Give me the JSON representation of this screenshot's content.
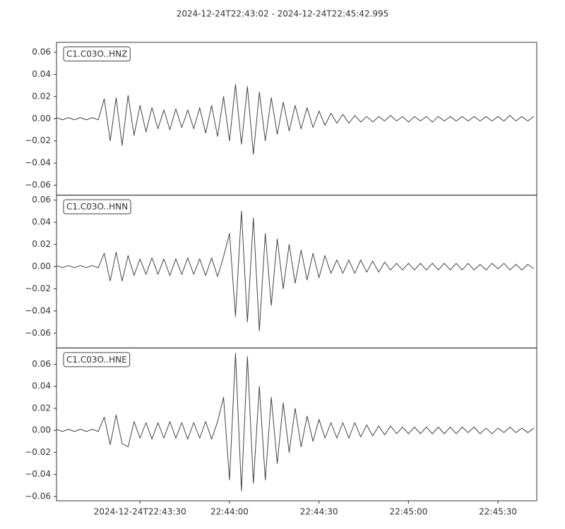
{
  "chart_data": {
    "type": "line",
    "title": "2024-12-24T22:43:02  -  2024-12-24T22:45:42.995",
    "xlim": [
      "2024-12-24T22:43:02",
      "2024-12-24T22:45:42.995"
    ],
    "xticks": [
      {
        "value": "2024-12-24T22:43:30",
        "label": "2024-12-24T22:43:30"
      },
      {
        "value": "2024-12-24T22:44:00",
        "label": "22:44:00"
      },
      {
        "value": "2024-12-24T22:44:30",
        "label": "22:44:30"
      },
      {
        "value": "2024-12-24T22:45:00",
        "label": "22:45:00"
      },
      {
        "value": "2024-12-24T22:45:30",
        "label": "22:45:30"
      }
    ],
    "x": [
      "2024-12-24T22:43:02",
      "2024-12-24T22:43:04",
      "2024-12-24T22:43:06",
      "2024-12-24T22:43:08",
      "2024-12-24T22:43:10",
      "2024-12-24T22:43:12",
      "2024-12-24T22:43:14",
      "2024-12-24T22:43:16",
      "2024-12-24T22:43:18",
      "2024-12-24T22:43:20",
      "2024-12-24T22:43:22",
      "2024-12-24T22:43:24",
      "2024-12-24T22:43:26",
      "2024-12-24T22:43:28",
      "2024-12-24T22:43:30",
      "2024-12-24T22:43:32",
      "2024-12-24T22:43:34",
      "2024-12-24T22:43:36",
      "2024-12-24T22:43:38",
      "2024-12-24T22:43:40",
      "2024-12-24T22:43:42",
      "2024-12-24T22:43:44",
      "2024-12-24T22:43:46",
      "2024-12-24T22:43:48",
      "2024-12-24T22:43:50",
      "2024-12-24T22:43:52",
      "2024-12-24T22:43:54",
      "2024-12-24T22:43:56",
      "2024-12-24T22:43:58",
      "2024-12-24T22:44:00",
      "2024-12-24T22:44:02",
      "2024-12-24T22:44:04",
      "2024-12-24T22:44:06",
      "2024-12-24T22:44:08",
      "2024-12-24T22:44:10",
      "2024-12-24T22:44:12",
      "2024-12-24T22:44:14",
      "2024-12-24T22:44:16",
      "2024-12-24T22:44:18",
      "2024-12-24T22:44:20",
      "2024-12-24T22:44:22",
      "2024-12-24T22:44:24",
      "2024-12-24T22:44:26",
      "2024-12-24T22:44:28",
      "2024-12-24T22:44:30",
      "2024-12-24T22:44:32",
      "2024-12-24T22:44:34",
      "2024-12-24T22:44:36",
      "2024-12-24T22:44:38",
      "2024-12-24T22:44:40",
      "2024-12-24T22:44:42",
      "2024-12-24T22:44:44",
      "2024-12-24T22:44:46",
      "2024-12-24T22:44:48",
      "2024-12-24T22:44:50",
      "2024-12-24T22:44:52",
      "2024-12-24T22:44:54",
      "2024-12-24T22:44:56",
      "2024-12-24T22:44:58",
      "2024-12-24T22:45:00",
      "2024-12-24T22:45:02",
      "2024-12-24T22:45:04",
      "2024-12-24T22:45:06",
      "2024-12-24T22:45:08",
      "2024-12-24T22:45:10",
      "2024-12-24T22:45:12",
      "2024-12-24T22:45:14",
      "2024-12-24T22:45:16",
      "2024-12-24T22:45:18",
      "2024-12-24T22:45:20",
      "2024-12-24T22:45:22",
      "2024-12-24T22:45:24",
      "2024-12-24T22:45:26",
      "2024-12-24T22:45:28",
      "2024-12-24T22:45:30",
      "2024-12-24T22:45:32",
      "2024-12-24T22:45:34",
      "2024-12-24T22:45:36",
      "2024-12-24T22:45:38",
      "2024-12-24T22:45:40",
      "2024-12-24T22:45:42"
    ],
    "series": [
      {
        "name": "C1.C03O..HNZ",
        "color": "#444444",
        "ylim": [
          -0.069,
          0.069
        ],
        "yticks": [
          {
            "value": -0.06,
            "label": "−0.06"
          },
          {
            "value": -0.04,
            "label": "−0.04"
          },
          {
            "value": -0.02,
            "label": "−0.02"
          },
          {
            "value": 0,
            "label": "0.00"
          },
          0.02,
          0.04,
          0.06
        ],
        "values": [
          0.001,
          -0.001,
          0.001,
          -0.001,
          0.001,
          -0.001,
          0.001,
          -0.001,
          0.018,
          -0.02,
          0.019,
          -0.024,
          0.021,
          -0.015,
          0.012,
          -0.012,
          0.01,
          -0.009,
          0.008,
          -0.01,
          0.009,
          -0.008,
          0.008,
          -0.009,
          0.01,
          -0.013,
          0.012,
          -0.016,
          0.02,
          -0.02,
          0.031,
          -0.023,
          0.029,
          -0.032,
          0.024,
          -0.02,
          0.019,
          -0.014,
          0.015,
          -0.011,
          0.012,
          -0.009,
          0.01,
          -0.008,
          0.007,
          -0.006,
          0.005,
          -0.004,
          0.004,
          -0.004,
          0.003,
          -0.003,
          0.002,
          -0.003,
          0.002,
          -0.002,
          0.003,
          -0.002,
          0.002,
          -0.003,
          0.002,
          -0.002,
          0.002,
          -0.003,
          0.002,
          -0.002,
          0.002,
          -0.002,
          0.002,
          -0.002,
          0.002,
          -0.002,
          0.002,
          -0.002,
          0.002,
          -0.002,
          0.003,
          -0.002,
          0.002,
          -0.002,
          0.002
        ]
      },
      {
        "name": "C1.C03O..HNN",
        "color": "#444444",
        "ylim": [
          -0.0734,
          0.0645
        ],
        "yticks": [
          {
            "value": -0.06,
            "label": "−0.06"
          },
          {
            "value": -0.04,
            "label": "−0.04"
          },
          {
            "value": -0.02,
            "label": "−0.02"
          },
          {
            "value": 0,
            "label": "0.00"
          },
          0.02,
          0.04,
          0.06
        ],
        "values": [
          0.001,
          -0.001,
          0.001,
          -0.001,
          0.001,
          -0.001,
          0.001,
          -0.001,
          0.012,
          -0.013,
          0.013,
          -0.013,
          0.01,
          -0.008,
          0.007,
          -0.007,
          0.008,
          -0.007,
          0.007,
          -0.008,
          0.007,
          -0.007,
          0.008,
          -0.007,
          0.007,
          -0.008,
          0.008,
          -0.009,
          0.009,
          0.03,
          -0.045,
          0.05,
          -0.05,
          0.044,
          -0.058,
          0.03,
          -0.035,
          0.025,
          -0.02,
          0.02,
          -0.015,
          0.015,
          -0.012,
          0.012,
          -0.01,
          0.01,
          -0.006,
          0.006,
          -0.006,
          0.006,
          -0.006,
          0.006,
          -0.005,
          0.005,
          -0.005,
          0.004,
          -0.003,
          0.003,
          -0.003,
          0.003,
          -0.003,
          0.003,
          -0.003,
          0.003,
          -0.003,
          0.003,
          -0.003,
          0.003,
          -0.003,
          0.003,
          -0.003,
          0.002,
          -0.003,
          0.003,
          -0.002,
          0.003,
          -0.003,
          0.002,
          -0.003,
          0.002,
          -0.002
        ]
      },
      {
        "name": "C1.C03O..HNE",
        "color": "#444444",
        "ylim": [
          -0.0639,
          0.0748
        ],
        "yticks": [
          {
            "value": -0.06,
            "label": "−0.06"
          },
          {
            "value": -0.04,
            "label": "−0.04"
          },
          {
            "value": -0.02,
            "label": "−0.02"
          },
          {
            "value": 0,
            "label": "0.00"
          },
          0.02,
          0.04,
          0.06
        ],
        "values": [
          0.001,
          -0.001,
          0.001,
          -0.001,
          0.001,
          -0.001,
          0.001,
          -0.001,
          0.012,
          -0.013,
          0.014,
          -0.012,
          -0.015,
          0.008,
          -0.007,
          0.007,
          -0.008,
          0.007,
          -0.007,
          0.008,
          -0.007,
          0.007,
          -0.008,
          0.007,
          -0.007,
          0.008,
          -0.008,
          0.008,
          0.03,
          -0.045,
          0.07,
          -0.055,
          0.067,
          -0.048,
          0.04,
          -0.045,
          0.03,
          -0.03,
          0.025,
          -0.02,
          0.02,
          -0.015,
          0.013,
          -0.01,
          0.01,
          -0.007,
          0.007,
          -0.007,
          0.007,
          -0.007,
          0.007,
          -0.006,
          0.005,
          -0.005,
          0.004,
          -0.004,
          0.004,
          -0.003,
          0.003,
          -0.003,
          0.003,
          -0.003,
          0.003,
          -0.003,
          0.003,
          -0.003,
          0.003,
          -0.003,
          0.003,
          -0.002,
          0.003,
          -0.003,
          0.002,
          -0.003,
          0.002,
          -0.002,
          0.003,
          -0.002,
          0.002,
          -0.002,
          0.002
        ]
      }
    ]
  }
}
